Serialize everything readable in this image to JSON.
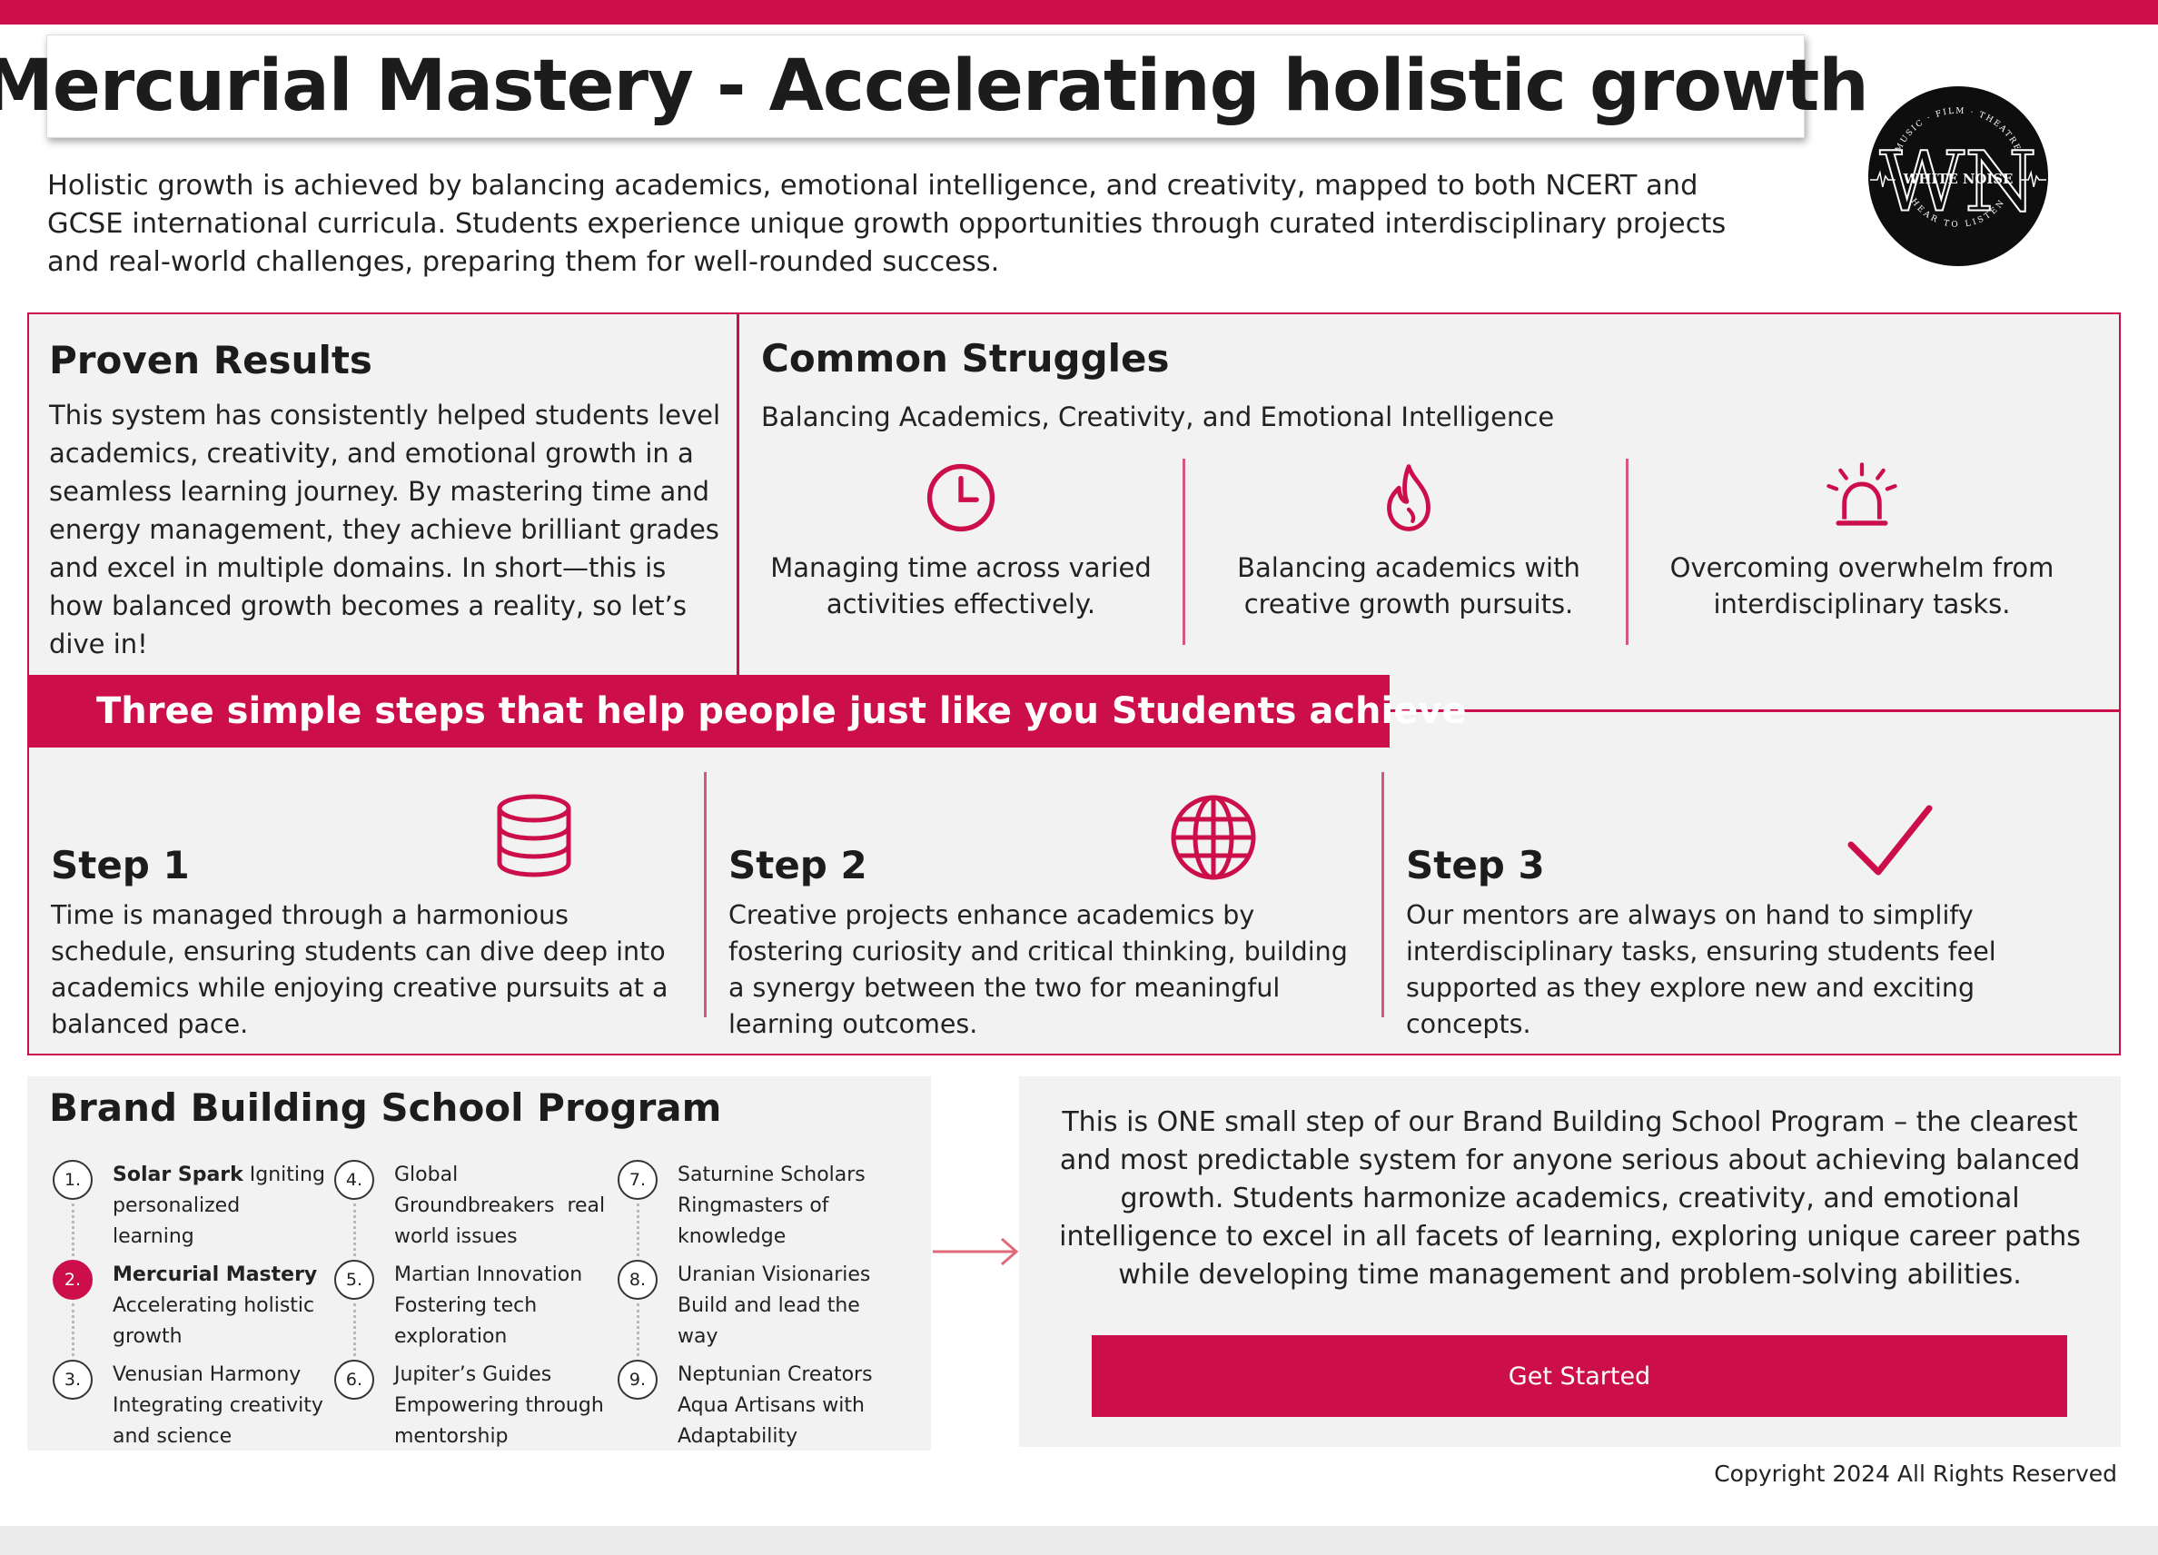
{
  "header": {
    "title": "Mercurial Mastery - Accelerating holistic growth",
    "intro": "Holistic growth is achieved by balancing academics, emotional intelligence, and creativity, mapped to both NCERT and GCSE international curricula. Students experience unique growth opportunities through curated interdisciplinary projects and real-world challenges, preparing them for well-rounded success."
  },
  "logo": {
    "main": "WHITE NOISE",
    "top_arc": "MUSIC · FILM · THEATRE",
    "bottom_arc": "HEAR TO LISTEN",
    "icon": "white-noise-logo"
  },
  "proven": {
    "title": "Proven Results",
    "text": "This system has consistently helped students level academics, creativity, and emotional growth in a seamless learning journey. By mastering time and energy management, they achieve brilliant grades and excel in multiple domains. In short—this is how balanced growth becomes a reality, so let’s dive in!"
  },
  "struggles": {
    "title": "Common Struggles",
    "subtitle": "Balancing Academics, Creativity, and Emotional Intelligence",
    "items": [
      {
        "icon": "clock-icon",
        "text": "Managing time across varied activities effectively."
      },
      {
        "icon": "flame-icon",
        "text": "Balancing academics with creative growth pursuits."
      },
      {
        "icon": "alarm-icon",
        "text": "Overcoming overwhelm from interdisciplinary tasks."
      }
    ]
  },
  "banner": "Three simple steps that help people just like you Students achieve",
  "steps": [
    {
      "title": "Step 1",
      "icon": "database-icon",
      "text": "Time is managed through a harmonious schedule, ensuring students can dive deep into academics while enjoying creative pursuits at a balanced pace."
    },
    {
      "title": "Step 2",
      "icon": "globe-icon",
      "text": "Creative projects enhance academics by fostering curiosity and critical thinking, building a synergy between the two for meaningful learning outcomes."
    },
    {
      "title": "Step 3",
      "icon": "checkmark-icon",
      "text": "Our mentors are always on hand to simplify interdisciplinary tasks, ensuring students feel supported as they explore new and exciting concepts."
    }
  ],
  "program": {
    "title": "Brand Building School Program",
    "items": [
      {
        "num": "1.",
        "bold": "Solar Spark",
        "rest": " Igniting personalized learning",
        "active": false
      },
      {
        "num": "2.",
        "bold": "Mercurial Mastery",
        "rest": " Accelerating holistic growth",
        "active": true
      },
      {
        "num": "3.",
        "bold": "",
        "rest": "Venusian Harmony Integrating creativity and science",
        "active": false
      },
      {
        "num": "4.",
        "bold": "",
        "rest": "Global Groundbreakers  real world issues",
        "active": false
      },
      {
        "num": "5.",
        "bold": "",
        "rest": "Martian Innovation Fostering tech exploration",
        "active": false
      },
      {
        "num": "6.",
        "bold": "",
        "rest": "Jupiter’s Guides Empowering through mentorship",
        "active": false
      },
      {
        "num": "7.",
        "bold": "",
        "rest": "Saturnine Scholars Ringmasters of knowledge",
        "active": false
      },
      {
        "num": "8.",
        "bold": "",
        "rest": "Uranian Visionaries Build and lead the way",
        "active": false
      },
      {
        "num": "9.",
        "bold": "",
        "rest": "Neptunian Creators Aqua Artisans with Adaptability",
        "active": false
      }
    ]
  },
  "cta": {
    "text": "This is ONE small step of our Brand Building School Program – the clearest and most predictable system for anyone serious about achieving balanced growth. Students harmonize academics, creativity, and emotional intelligence to excel in all facets of learning, exploring unique career paths while developing time management and problem-solving abilities.",
    "button": "Get Started"
  },
  "footer": {
    "copyright": "Copyright 2024 All Rights Reserved"
  },
  "colors": {
    "accent": "#cc0f4b",
    "panel": "#f2f2f2",
    "divider": "#d4587e"
  }
}
